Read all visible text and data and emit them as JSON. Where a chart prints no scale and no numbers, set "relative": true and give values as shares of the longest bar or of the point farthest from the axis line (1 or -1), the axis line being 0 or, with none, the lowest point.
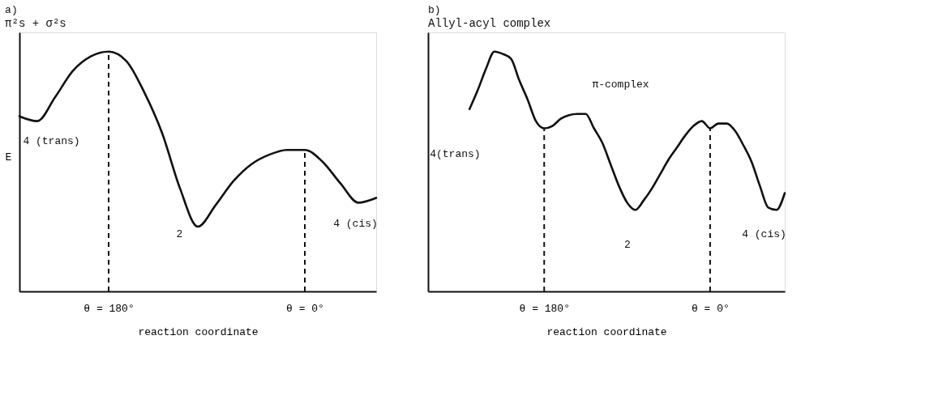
{
  "chart_data": [
    {
      "type": "line",
      "title": "a)",
      "subtitle": "π²s + σ²s",
      "xlabel": "reaction coordinate",
      "ylabel": "E",
      "relative": true,
      "tick_labels": "x",
      "categories": [
        null,
        null,
        null,
        null,
        null,
        "θ = 180°",
        null,
        null,
        null,
        null,
        null,
        null,
        null,
        null,
        null,
        null,
        "θ = 0°",
        null,
        null,
        null,
        null
      ],
      "series": [
        {
          "color": "#111111",
          "values": [
            0.73,
            0.71,
            0.81,
            0.92,
            0.98,
            1,
            0.96,
            0.83,
            0.66,
            0.43,
            0.27,
            0.36,
            0.46,
            0.53,
            0.57,
            0.59,
            0.59,
            0.54,
            0.45,
            0.37,
            0.39
          ]
        }
      ],
      "ref_lines": [
        {
          "axis": "x",
          "value": "θ = 180°",
          "line_style": "dashed"
        },
        {
          "axis": "x",
          "value": "θ = 0°",
          "line_style": "dashed"
        }
      ],
      "annotations": [
        "4 (trans)",
        "2",
        "4 (cis)"
      ]
    },
    {
      "type": "line",
      "title": "b)",
      "subtitle": "Allyl-acyl complex",
      "xlabel": "reaction coordinate",
      "relative": true,
      "tick_labels": "x",
      "categories": [
        null,
        null,
        null,
        null,
        null,
        null,
        null,
        null,
        null,
        null,
        null,
        null,
        null,
        null,
        "θ = 180°",
        null,
        null,
        null,
        null,
        null,
        null,
        null,
        null,
        null,
        null,
        null,
        null,
        null,
        null,
        null,
        null,
        null,
        null,
        null,
        "θ = 0°",
        null,
        null,
        null,
        null,
        null,
        null,
        null,
        null,
        null
      ],
      "series": [
        {
          "color": "#111111",
          "values": [
            null,
            null,
            null,
            null,
            null,
            0.76,
            0.84,
            0.93,
            1,
            0.99,
            0.97,
            0.88,
            0.8,
            0.71,
            0.68,
            0.69,
            0.72,
            0.735,
            0.74,
            0.74,
            0.68,
            0.62,
            0.53,
            0.44,
            0.37,
            0.34,
            0.38,
            0.43,
            0.49,
            0.55,
            0.6,
            0.65,
            0.69,
            0.71,
            0.68,
            0.7,
            0.7,
            0.67,
            0.61,
            0.54,
            0.44,
            0.35,
            0.34,
            0.41
          ]
        }
      ],
      "ref_lines": [
        {
          "axis": "x",
          "value": "θ = 180°",
          "line_style": "dashed"
        },
        {
          "axis": "x",
          "value": "θ = 0°",
          "line_style": "dashed"
        }
      ],
      "annotations": [
        "4(trans)",
        "π-complex",
        "2",
        "4 (cis)"
      ]
    }
  ]
}
